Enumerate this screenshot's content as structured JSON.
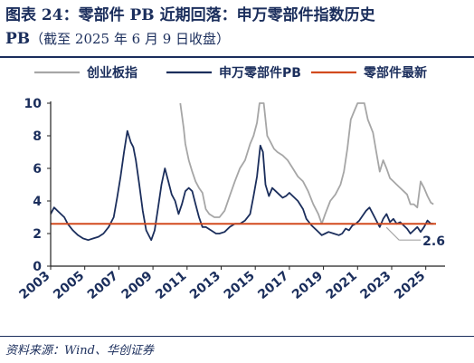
{
  "title": {
    "line1": "图表 24：零部件 PB 近期回落：申万零部件指数历史",
    "line2_main": "PB",
    "line2_sub": "（截至 2025 年 6 月 9 日收盘）"
  },
  "source": "资料来源：Wind、华创证券",
  "colors": {
    "chinext": "#a6a6a6",
    "sw_parts": "#1b2e5c",
    "latest": "#d24a1e",
    "text": "#1b2e5c"
  },
  "chart_data": {
    "type": "line",
    "legend": [
      "创业板指",
      "申万零部件PB",
      "零部件最新"
    ],
    "legend_placement": "top",
    "x_ticks": [
      "2003",
      "2005",
      "2007",
      "2009",
      "2011",
      "2013",
      "2015",
      "2017",
      "2019",
      "2021",
      "2023",
      "2025"
    ],
    "y_ticks": [
      "0",
      "2",
      "4",
      "6",
      "8",
      "10"
    ],
    "xlim": [
      2003.0,
      2025.6
    ],
    "ylim": [
      0,
      10
    ],
    "grid": false,
    "latest_value": 2.6,
    "latest_label": "2.6",
    "series": [
      {
        "name": "申万零部件PB",
        "x": [
          2003.0,
          2003.2,
          2003.5,
          2003.8,
          2004.0,
          2004.3,
          2004.6,
          2004.9,
          2005.2,
          2005.5,
          2005.8,
          2006.1,
          2006.4,
          2006.7,
          2006.9,
          2007.1,
          2007.3,
          2007.5,
          2007.7,
          2007.85,
          2008.0,
          2008.2,
          2008.4,
          2008.6,
          2008.8,
          2008.9,
          2009.1,
          2009.3,
          2009.5,
          2009.7,
          2009.9,
          2010.1,
          2010.3,
          2010.5,
          2010.7,
          2010.9,
          2011.1,
          2011.3,
          2011.5,
          2011.7,
          2011.9,
          2012.1,
          2012.4,
          2012.7,
          2012.9,
          2013.2,
          2013.5,
          2013.8,
          2014.1,
          2014.4,
          2014.7,
          2014.9,
          2015.1,
          2015.3,
          2015.45,
          2015.6,
          2015.8,
          2016.0,
          2016.2,
          2016.4,
          2016.6,
          2016.8,
          2017.0,
          2017.2,
          2017.5,
          2017.8,
          2018.0,
          2018.3,
          2018.6,
          2018.9,
          2019.1,
          2019.3,
          2019.6,
          2019.9,
          2020.1,
          2020.3,
          2020.5,
          2020.7,
          2020.9,
          2021.1,
          2021.3,
          2021.5,
          2021.7,
          2021.9,
          2022.1,
          2022.3,
          2022.5,
          2022.7,
          2022.9,
          2023.1,
          2023.3,
          2023.5,
          2023.7,
          2023.9,
          2024.1,
          2024.3,
          2024.5,
          2024.7,
          2024.9,
          2025.1,
          2025.3,
          2025.45
        ],
        "y": [
          3.2,
          3.6,
          3.3,
          3.0,
          2.6,
          2.2,
          1.9,
          1.7,
          1.6,
          1.7,
          1.8,
          2.0,
          2.4,
          3.0,
          4.2,
          5.5,
          7.0,
          8.3,
          7.6,
          7.3,
          6.5,
          5.0,
          3.4,
          2.2,
          1.8,
          1.6,
          2.2,
          3.6,
          5.0,
          6.0,
          5.2,
          4.4,
          4.0,
          3.2,
          3.8,
          4.6,
          4.8,
          4.6,
          3.8,
          3.0,
          2.4,
          2.4,
          2.2,
          2.0,
          2.0,
          2.1,
          2.4,
          2.6,
          2.6,
          2.8,
          3.2,
          4.3,
          5.5,
          7.4,
          7.0,
          5.0,
          4.3,
          4.8,
          4.6,
          4.4,
          4.2,
          4.3,
          4.5,
          4.3,
          4.0,
          3.5,
          2.9,
          2.5,
          2.2,
          1.9,
          2.0,
          2.1,
          2.0,
          1.9,
          2.0,
          2.3,
          2.2,
          2.5,
          2.6,
          2.8,
          3.1,
          3.4,
          3.6,
          3.2,
          2.8,
          2.4,
          2.9,
          3.2,
          2.7,
          2.9,
          2.6,
          2.7,
          2.5,
          2.3,
          2.0,
          2.2,
          2.4,
          2.1,
          2.4,
          2.8,
          2.6,
          2.6
        ]
      },
      {
        "name": "创业板指",
        "x": [
          2010.6,
          2010.8,
          2010.9,
          2011.1,
          2011.3,
          2011.5,
          2011.7,
          2011.9,
          2012.1,
          2012.3,
          2012.6,
          2012.9,
          2013.2,
          2013.5,
          2013.8,
          2014.1,
          2014.4,
          2014.7,
          2014.9,
          2015.1,
          2015.25,
          2015.4,
          2015.5,
          2015.7,
          2015.9,
          2016.1,
          2016.3,
          2016.6,
          2016.9,
          2017.2,
          2017.5,
          2017.8,
          2018.1,
          2018.4,
          2018.7,
          2018.9,
          2019.1,
          2019.4,
          2019.7,
          2020.0,
          2020.2,
          2020.4,
          2020.6,
          2020.8,
          2021.0,
          2021.2,
          2021.4,
          2021.6,
          2021.9,
          2022.1,
          2022.3,
          2022.5,
          2022.7,
          2022.9,
          2023.1,
          2023.3,
          2023.5,
          2023.7,
          2023.9,
          2024.1,
          2024.3,
          2024.5,
          2024.7,
          2024.9,
          2025.1,
          2025.3,
          2025.45
        ],
        "y": [
          10.0,
          8.5,
          7.5,
          6.5,
          5.8,
          5.2,
          4.8,
          4.5,
          3.5,
          3.2,
          3.0,
          3.0,
          3.4,
          4.3,
          5.2,
          6.0,
          6.5,
          7.5,
          8.0,
          8.8,
          10.0,
          10.0,
          10.0,
          8.0,
          7.6,
          7.2,
          7.0,
          6.8,
          6.5,
          6.0,
          5.5,
          5.2,
          4.6,
          3.8,
          3.2,
          2.6,
          3.2,
          4.0,
          4.4,
          5.0,
          5.8,
          7.2,
          9.0,
          9.5,
          10.0,
          10.0,
          10.0,
          9.0,
          8.2,
          7.0,
          5.8,
          6.5,
          6.0,
          5.4,
          5.2,
          5.0,
          4.8,
          4.6,
          4.4,
          3.8,
          3.8,
          3.6,
          5.2,
          4.8,
          4.3,
          3.9,
          3.8
        ]
      }
    ]
  }
}
